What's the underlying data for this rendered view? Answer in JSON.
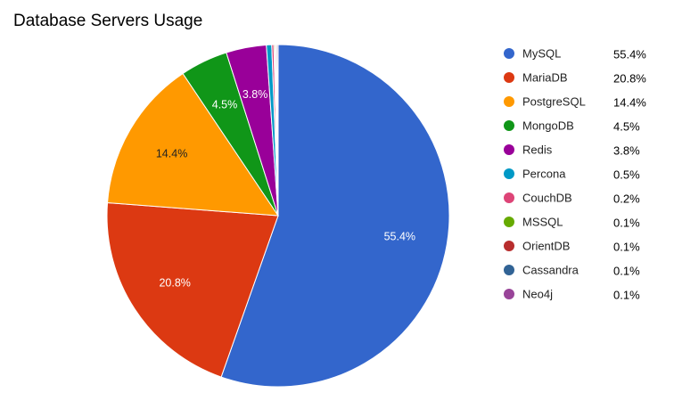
{
  "chart_data": {
    "type": "pie",
    "title": "Database Servers Usage",
    "legend_position": "right",
    "slices": [
      {
        "label": "MySQL",
        "value": 55.4,
        "display": "55.4%",
        "color": "#3366cc"
      },
      {
        "label": "MariaDB",
        "value": 20.8,
        "display": "20.8%",
        "color": "#dc3912"
      },
      {
        "label": "PostgreSQL",
        "value": 14.4,
        "display": "14.4%",
        "color": "#ff9900"
      },
      {
        "label": "MongoDB",
        "value": 4.5,
        "display": "4.5%",
        "color": "#109618"
      },
      {
        "label": "Redis",
        "value": 3.8,
        "display": "3.8%",
        "color": "#990099"
      },
      {
        "label": "Percona",
        "value": 0.5,
        "display": "0.5%",
        "color": "#0099c6"
      },
      {
        "label": "CouchDB",
        "value": 0.2,
        "display": "0.2%",
        "color": "#dd4477"
      },
      {
        "label": "MSSQL",
        "value": 0.1,
        "display": "0.1%",
        "color": "#66aa00"
      },
      {
        "label": "OrientDB",
        "value": 0.1,
        "display": "0.1%",
        "color": "#b82e2e"
      },
      {
        "label": "Cassandra",
        "value": 0.1,
        "display": "0.1%",
        "color": "#316395"
      },
      {
        "label": "Neo4j",
        "value": 0.1,
        "display": "0.1%",
        "color": "#994499"
      }
    ]
  }
}
